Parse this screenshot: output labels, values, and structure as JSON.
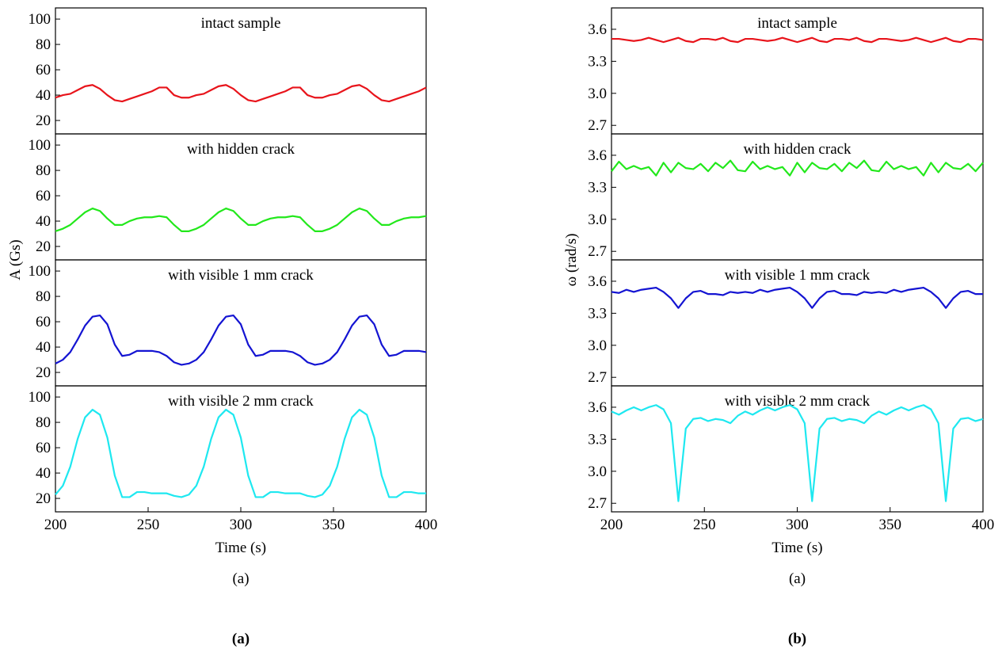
{
  "chart_data": [
    {
      "type": "line",
      "ylabel": "A (Gs)",
      "xlabel": "Time (s)",
      "caption": "(a)",
      "figure_label": "(a)",
      "xlim": [
        200,
        400
      ],
      "xticks": [
        200,
        250,
        300,
        350,
        400
      ],
      "ylim": [
        9.4,
        108.8
      ],
      "yticks": [
        20,
        40,
        60,
        80,
        100
      ],
      "x": [
        200,
        204,
        208,
        212,
        216,
        220,
        224,
        228,
        232,
        236,
        240,
        244,
        248,
        252,
        256,
        260,
        264,
        268,
        272,
        276,
        280,
        284,
        288,
        292,
        296,
        300,
        304,
        308,
        312,
        316,
        320,
        324,
        328,
        332,
        336,
        340,
        344,
        348,
        352,
        356,
        360,
        364,
        368,
        372,
        376,
        380,
        384,
        388,
        392,
        396,
        400
      ],
      "series": [
        {
          "name": "intact sample",
          "color": "#e8141b",
          "values": [
            38,
            40,
            41,
            44,
            47,
            48,
            45,
            40,
            36,
            35,
            37,
            39,
            41,
            43,
            46,
            46,
            40,
            38,
            38,
            40,
            41,
            44,
            47,
            48,
            45,
            40,
            36,
            35,
            37,
            39,
            41,
            43,
            46,
            46,
            40,
            38,
            38,
            40,
            41,
            44,
            47,
            48,
            45,
            40,
            36,
            35,
            37,
            39,
            41,
            43,
            46
          ]
        },
        {
          "name": "with hidden crack",
          "color": "#22e81b",
          "values": [
            32,
            34,
            37,
            42,
            47,
            50,
            48,
            42,
            37,
            37,
            40,
            42,
            43,
            43,
            44,
            43,
            37,
            32,
            32,
            34,
            37,
            42,
            47,
            50,
            48,
            42,
            37,
            37,
            40,
            42,
            43,
            43,
            44,
            43,
            37,
            32,
            32,
            34,
            37,
            42,
            47,
            50,
            48,
            42,
            37,
            37,
            40,
            42,
            43,
            43,
            44
          ]
        },
        {
          "name": "with visible 1 mm crack",
          "color": "#1414d2",
          "values": [
            27,
            30,
            36,
            46,
            57,
            64,
            65,
            58,
            42,
            33,
            34,
            37,
            37,
            37,
            36,
            33,
            28,
            26,
            27,
            30,
            36,
            46,
            57,
            64,
            65,
            58,
            42,
            33,
            34,
            37,
            37,
            37,
            36,
            33,
            28,
            26,
            27,
            30,
            36,
            46,
            57,
            64,
            65,
            58,
            42,
            33,
            34,
            37,
            37,
            37,
            36
          ]
        },
        {
          "name": "with visible 2 mm crack",
          "color": "#1ee8f0",
          "values": [
            23,
            30,
            45,
            67,
            84,
            90,
            86,
            68,
            38,
            21,
            21,
            25,
            25,
            24,
            24,
            24,
            22,
            21,
            23,
            30,
            45,
            67,
            84,
            90,
            86,
            68,
            38,
            21,
            21,
            25,
            25,
            24,
            24,
            24,
            22,
            21,
            23,
            30,
            45,
            67,
            84,
            90,
            86,
            68,
            38,
            21,
            21,
            25,
            25,
            24,
            24
          ]
        }
      ]
    },
    {
      "type": "line",
      "ylabel": "ω (rad/s)",
      "xlabel": "Time (s)",
      "caption": "(a)",
      "figure_label": "(b)",
      "xlim": [
        200,
        400
      ],
      "xticks": [
        200,
        250,
        300,
        350,
        400
      ],
      "ylim": [
        2.62,
        3.8
      ],
      "yticks": [
        2.7,
        {
          "value": 3,
          "label": "3.0"
        },
        3.3,
        3.6
      ],
      "x": [
        200,
        204,
        208,
        212,
        216,
        220,
        224,
        228,
        232,
        236,
        240,
        244,
        248,
        252,
        256,
        260,
        264,
        268,
        272,
        276,
        280,
        284,
        288,
        292,
        296,
        300,
        304,
        308,
        312,
        316,
        320,
        324,
        328,
        332,
        336,
        340,
        344,
        348,
        352,
        356,
        360,
        364,
        368,
        372,
        376,
        380,
        384,
        388,
        392,
        396,
        400
      ],
      "series": [
        {
          "name": "intact sample",
          "color": "#e8141b",
          "values": [
            3.51,
            3.51,
            3.5,
            3.49,
            3.5,
            3.52,
            3.5,
            3.48,
            3.5,
            3.52,
            3.49,
            3.48,
            3.51,
            3.51,
            3.5,
            3.52,
            3.49,
            3.48,
            3.51,
            3.51,
            3.5,
            3.49,
            3.5,
            3.52,
            3.5,
            3.48,
            3.5,
            3.52,
            3.49,
            3.48,
            3.51,
            3.51,
            3.5,
            3.52,
            3.49,
            3.48,
            3.51,
            3.51,
            3.5,
            3.49,
            3.5,
            3.52,
            3.5,
            3.48,
            3.5,
            3.52,
            3.49,
            3.48,
            3.51,
            3.51,
            3.5
          ]
        },
        {
          "name": "with hidden crack",
          "color": "#22e81b",
          "values": [
            3.45,
            3.54,
            3.47,
            3.5,
            3.47,
            3.49,
            3.41,
            3.53,
            3.44,
            3.53,
            3.48,
            3.47,
            3.52,
            3.45,
            3.53,
            3.48,
            3.55,
            3.46,
            3.45,
            3.54,
            3.47,
            3.5,
            3.47,
            3.49,
            3.41,
            3.53,
            3.44,
            3.53,
            3.48,
            3.47,
            3.52,
            3.45,
            3.53,
            3.48,
            3.55,
            3.46,
            3.45,
            3.54,
            3.47,
            3.5,
            3.47,
            3.49,
            3.41,
            3.53,
            3.44,
            3.53,
            3.48,
            3.47,
            3.52,
            3.45,
            3.53
          ]
        },
        {
          "name": "with visible 1 mm crack",
          "color": "#1414d2",
          "values": [
            3.5,
            3.49,
            3.52,
            3.5,
            3.52,
            3.53,
            3.54,
            3.5,
            3.44,
            3.35,
            3.44,
            3.5,
            3.51,
            3.48,
            3.48,
            3.47,
            3.5,
            3.49,
            3.5,
            3.49,
            3.52,
            3.5,
            3.52,
            3.53,
            3.54,
            3.5,
            3.44,
            3.35,
            3.44,
            3.5,
            3.51,
            3.48,
            3.48,
            3.47,
            3.5,
            3.49,
            3.5,
            3.49,
            3.52,
            3.5,
            3.52,
            3.53,
            3.54,
            3.5,
            3.44,
            3.35,
            3.44,
            3.5,
            3.51,
            3.48,
            3.48
          ]
        },
        {
          "name": "with visible 2 mm crack",
          "color": "#1ee8f0",
          "values": [
            3.56,
            3.53,
            3.57,
            3.6,
            3.57,
            3.6,
            3.62,
            3.58,
            3.45,
            2.72,
            3.4,
            3.49,
            3.5,
            3.47,
            3.49,
            3.48,
            3.45,
            3.52,
            3.56,
            3.53,
            3.57,
            3.6,
            3.57,
            3.6,
            3.62,
            3.58,
            3.45,
            2.72,
            3.4,
            3.49,
            3.5,
            3.47,
            3.49,
            3.48,
            3.45,
            3.52,
            3.56,
            3.53,
            3.57,
            3.6,
            3.57,
            3.6,
            3.62,
            3.58,
            3.45,
            2.72,
            3.4,
            3.49,
            3.5,
            3.47,
            3.49
          ]
        }
      ]
    }
  ]
}
